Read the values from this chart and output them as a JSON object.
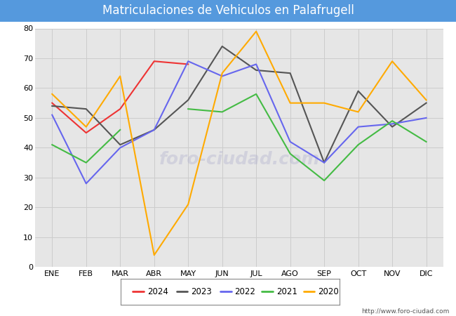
{
  "title": "Matriculaciones de Vehiculos en Palafrugell",
  "months": [
    "ENE",
    "FEB",
    "MAR",
    "ABR",
    "MAY",
    "JUN",
    "JUL",
    "AGO",
    "SEP",
    "OCT",
    "NOV",
    "DIC"
  ],
  "series": {
    "2024": [
      55,
      45,
      53,
      69,
      68,
      null,
      null,
      null,
      null,
      null,
      null,
      null
    ],
    "2023": [
      54,
      53,
      41,
      46,
      56,
      74,
      66,
      65,
      35,
      59,
      47,
      55
    ],
    "2022": [
      51,
      28,
      40,
      46,
      69,
      64,
      68,
      42,
      35,
      47,
      48,
      50
    ],
    "2021": [
      41,
      35,
      46,
      null,
      53,
      52,
      58,
      38,
      29,
      41,
      49,
      42
    ],
    "2020": [
      58,
      47,
      64,
      4,
      21,
      65,
      79,
      55,
      55,
      52,
      69,
      56
    ]
  },
  "colors": {
    "2024": "#ee3333",
    "2023": "#555555",
    "2022": "#6666ee",
    "2021": "#44bb44",
    "2020": "#ffaa00"
  },
  "ylim": [
    0,
    80
  ],
  "yticks": [
    0,
    10,
    20,
    30,
    40,
    50,
    60,
    70,
    80
  ],
  "title_fontsize": 12,
  "title_color": "white",
  "title_bg_color": "#5599dd",
  "grid_color": "#cccccc",
  "plot_bg_color": "#e6e6e6",
  "outer_bg_color": "#f0f0f0",
  "url": "http://www.foro-ciudad.com",
  "legend_order": [
    "2024",
    "2023",
    "2022",
    "2021",
    "2020"
  ],
  "watermark_text": "foro-ciudad.com",
  "watermark_color": "#aaaacc",
  "watermark_alpha": 0.35
}
